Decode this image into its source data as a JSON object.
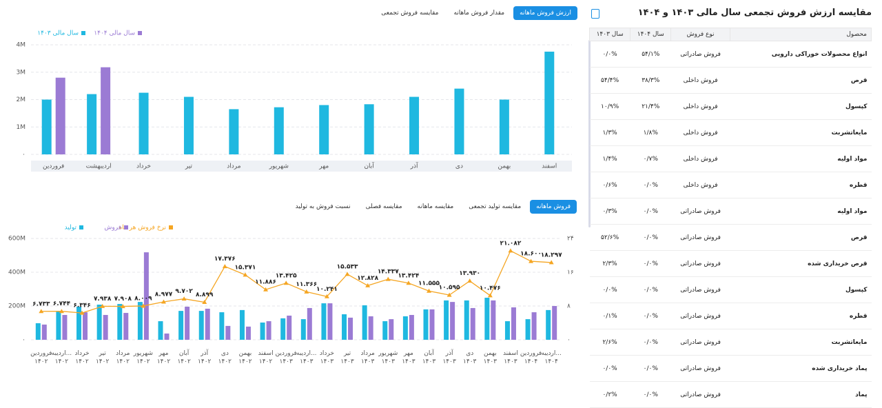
{
  "chart_data": [
    {
      "type": "bar",
      "tabs": [
        "ارزش فروش ماهانه",
        "مقدار فروش ماهانه",
        "مقایسه فروش تجمعی"
      ],
      "categories": [
        "فروردین",
        "اردیبهشت",
        "خرداد",
        "تیر",
        "مرداد",
        "شهریور",
        "مهر",
        "آبان",
        "آذر",
        "دی",
        "بهمن",
        "اسفند"
      ],
      "series": [
        {
          "name": "سال مالی ۱۴۰۳",
          "color": "#1fb8e0",
          "values": [
            2000000,
            2200000,
            2250000,
            2100000,
            1650000,
            1720000,
            1800000,
            1830000,
            2100000,
            2400000,
            2000000,
            3750000
          ]
        },
        {
          "name": "سال مالی ۱۴۰۴",
          "color": "#9b7bd4",
          "values": [
            2800000,
            3180000,
            null,
            null,
            null,
            null,
            null,
            null,
            null,
            null,
            null,
            null
          ]
        }
      ],
      "ylim": [
        0,
        4000000
      ],
      "yticks": [
        {
          "value": 0,
          "label": "۰"
        },
        {
          "value": 1000000,
          "label": "1M"
        },
        {
          "value": 2000000,
          "label": "2M"
        },
        {
          "value": 3000000,
          "label": "3M"
        },
        {
          "value": 4000000,
          "label": "4M"
        }
      ],
      "grid": true
    },
    {
      "type": "bar",
      "tabs": [
        "فروش ماهانه",
        "مقایسه تولید تجمعی",
        "مقایسه ماهانه",
        "مقایسه فصلی",
        "نسبت فروش به تولید"
      ],
      "categories": [
        "فروردین ۱۴۰۲",
        "اردیبه... ۱۴۰۲",
        "خرداد ۱۴۰۲",
        "تیر ۱۴۰۲",
        "مرداد ۱۴۰۲",
        "شهریور ۱۴۰۲",
        "مهر ۱۴۰۲",
        "آبان ۱۴۰۲",
        "آذر ۱۴۰۲",
        "دی ۱۴۰۲",
        "بهمن ۱۴۰۲",
        "اسفند ۱۴۰۲",
        "فروردین ۱۴۰۳",
        "اردیبه... ۱۴۰۳",
        "خرداد ۱۴۰۳",
        "تیر ۱۴۰۳",
        "مرداد ۱۴۰۳",
        "شهریور ۱۴۰۳",
        "مهر ۱۴۰۳",
        "آبان ۱۴۰۳",
        "آذر ۱۴۰۳",
        "دی ۱۴۰۳",
        "بهمن ۱۴۰۳",
        "اسفند ۱۴۰۳",
        "فروردین ۱۴۰۴",
        "اردیبه... ۱۴۰۴"
      ],
      "series": [
        {
          "name": "تولید",
          "color": "#1fb8e0",
          "values": [
            98000000,
            167000000,
            196000000,
            208000000,
            212000000,
            224000000,
            110000000,
            171000000,
            171000000,
            163000000,
            176000000,
            102000000,
            127000000,
            122000000,
            216000000,
            151000000,
            204000000,
            110000000,
            139000000,
            180000000,
            233000000,
            233000000,
            249000000,
            110000000,
            122000000,
            176000000
          ]
        },
        {
          "name": "فروش",
          "color": "#9b7bd4",
          "values": [
            90000000,
            147000000,
            163000000,
            147000000,
            159000000,
            518000000,
            37000000,
            196000000,
            184000000,
            82000000,
            78000000,
            110000000,
            143000000,
            188000000,
            216000000,
            131000000,
            139000000,
            122000000,
            147000000,
            180000000,
            224000000,
            188000000,
            233000000,
            192000000,
            163000000,
            200000000
          ]
        },
        {
          "name": "نرخ فروش هر ماه",
          "color": "#f5a623",
          "type": "line",
          "axis": "y2",
          "values": [
            6.733,
            6.744,
            6.346,
            7.938,
            7.908,
            8.009,
            8.977,
            9.702,
            8.899,
            17.376,
            15.371,
            11.886,
            13.425,
            11.366,
            10.241,
            15.533,
            12.828,
            14.337,
            13.424,
            11.555,
            10.595,
            13.93,
            10.476,
            21.082,
            18.6,
            18.297
          ],
          "value_labels": [
            "۶.۷۳۳",
            "۶.۷۴۴",
            "۶.۳۴۶",
            "۷.۹۳۸",
            "۷.۹۰۸",
            "۸.۰۰۹",
            "۸.۹۷۷",
            "۹.۷۰۲",
            "۸.۸۹۹",
            "۱۷.۳۷۶",
            "۱۵.۳۷۱",
            "۱۱.۸۸۶",
            "۱۳.۴۲۵",
            "۱۱.۳۶۶",
            "۱۰.۲۴۱",
            "۱۵.۵۳۳",
            "۱۲.۸۲۸",
            "۱۴.۳۳۷",
            "۱۳.۴۲۴",
            "۱۱.۵۵۵",
            "۱۰.۵۹۵",
            "۱۳.۹۳۰",
            "۱۰.۴۷۶",
            "۲۱.۰۸۲",
            "۱۸.۶۰۰",
            "۱۸.۲۹۷"
          ]
        }
      ],
      "ylim": [
        0,
        600000000
      ],
      "yticks": [
        {
          "value": 0,
          "label": "۰"
        },
        {
          "value": 200000000,
          "label": "200M"
        },
        {
          "value": 400000000,
          "label": "400M"
        },
        {
          "value": 600000000,
          "label": "600M"
        }
      ],
      "y2lim": [
        0,
        24
      ],
      "y2ticks": [
        {
          "value": 0,
          "label": "۰"
        },
        {
          "value": 8,
          "label": "۸"
        },
        {
          "value": 16,
          "label": "۱۶"
        },
        {
          "value": 24,
          "label": "۲۴"
        }
      ],
      "grid": true
    }
  ],
  "panel": {
    "title": "مقایسه ارزش فروش تجمعی سال مالی ۱۴۰۳ و ۱۴۰۴",
    "table": {
      "header": [
        "محصول",
        "نوع فروش",
        "سال ۱۴۰۴",
        "سال ۱۴۰۳"
      ],
      "rows": [
        [
          "انواع محصولات خوراکی دارویی",
          "فروش صادراتی",
          "۵۴/۱%",
          "۰/۰%"
        ],
        [
          "قرص",
          "فروش داخلی",
          "۳۸/۳%",
          "۵۴/۴%"
        ],
        [
          "کپسول",
          "فروش داخلی",
          "۲۱/۴%",
          "۱۰/۹%"
        ],
        [
          "مایعاتشربت",
          "فروش داخلی",
          "۱/۸%",
          "۱/۳%"
        ],
        [
          "مواد اولیه",
          "فروش داخلی",
          "۰/۷%",
          "۱/۴%"
        ],
        [
          "قطره",
          "فروش داخلی",
          "۰/۰%",
          "۰/۶%"
        ],
        [
          "مواد اولیه",
          "فروش صادراتی",
          "۰/۰%",
          "۰/۳%"
        ],
        [
          "قرص",
          "فروش صادراتی",
          "۰/۰%",
          "۵۲/۶%"
        ],
        [
          "قرص خریداری شده",
          "فروش صادراتی",
          "۰/۰%",
          "۲/۳%"
        ],
        [
          "کپسول",
          "فروش صادراتی",
          "۰/۰%",
          "۰/۰%"
        ],
        [
          "قطره",
          "فروش صادراتی",
          "۰/۰%",
          "۰/۱%"
        ],
        [
          "مایعاتشربت",
          "فروش صادراتی",
          "۰/۰%",
          "۲/۶%"
        ],
        [
          "پماد خریداری شده",
          "فروش صادراتی",
          "۰/۰%",
          "۰/۰%"
        ],
        [
          "پماد",
          "فروش صادراتی",
          "۰/۰%",
          "۰/۲%"
        ]
      ]
    }
  }
}
